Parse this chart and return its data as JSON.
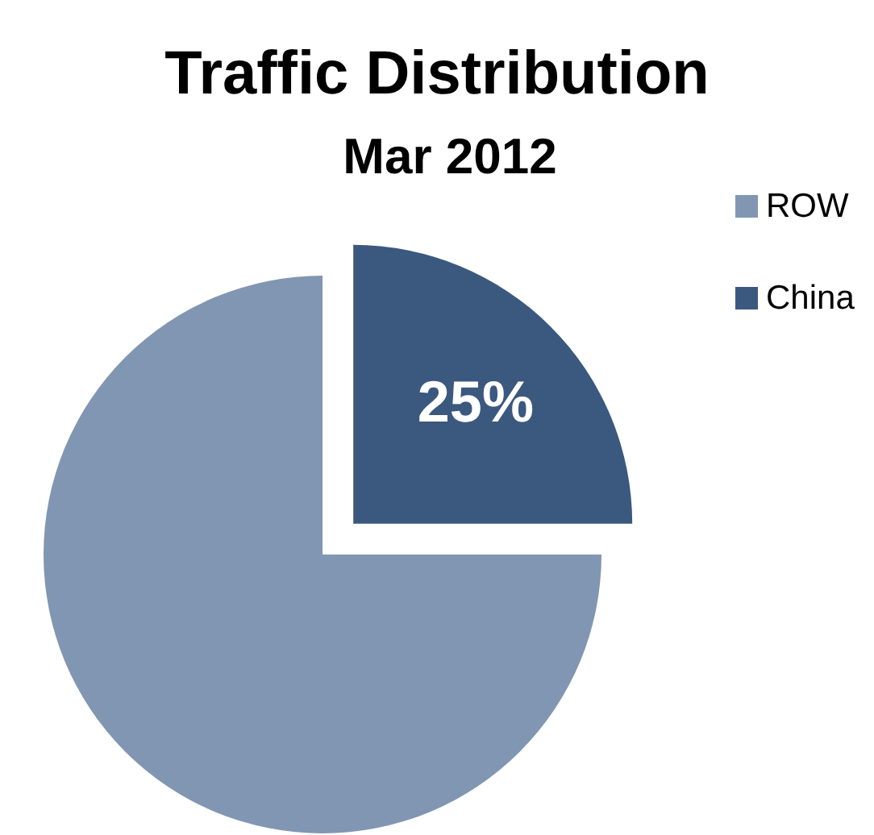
{
  "chart_data": {
    "type": "pie",
    "title": "Traffic Distribution",
    "subtitle": "Mar 2012",
    "categories": [
      "ROW",
      "China"
    ],
    "values": [
      75,
      25
    ],
    "colors": [
      "#8196b2",
      "#3b587f"
    ],
    "value_labels": [
      null,
      "25%"
    ],
    "legend": "right"
  }
}
